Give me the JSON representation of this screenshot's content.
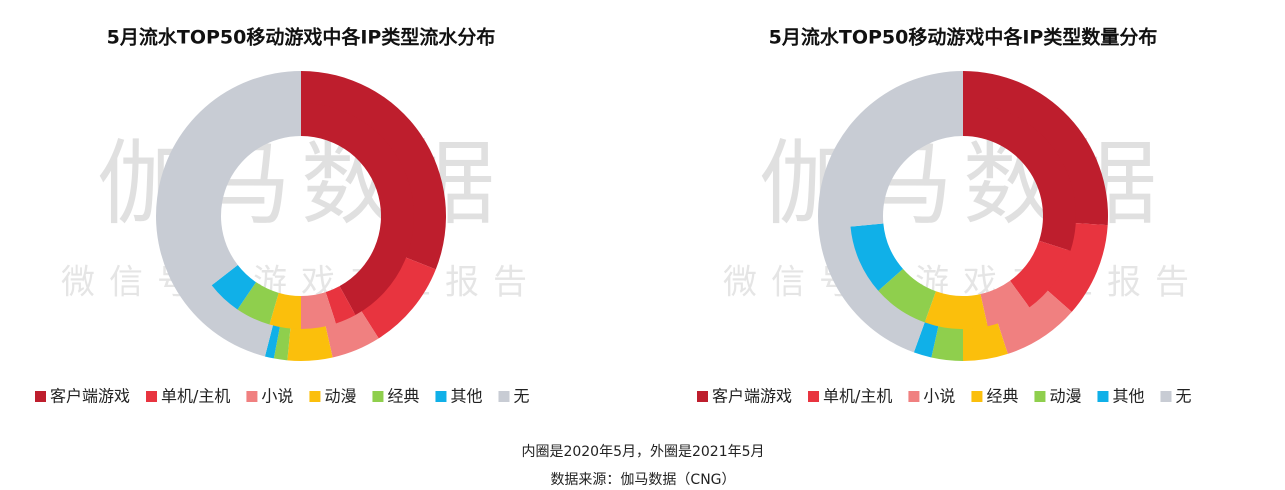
{
  "chart_data": [
    {
      "type": "donut",
      "title": "5月流水TOP50移动游戏中各IP类型流水分布",
      "categories": [
        "客户端游戏",
        "单机/主机",
        "小说",
        "动漫",
        "经典",
        "其他",
        "无"
      ],
      "colors": [
        "#be1e2d",
        "#e8343f",
        "#f08080",
        "#fbbf0c",
        "#8fcf4d",
        "#10b0e8",
        "#c8ccd4"
      ],
      "outer_values": [
        31,
        10,
        5.5,
        5,
        1.5,
        1,
        46
      ],
      "inner_values": [
        42,
        3,
        5,
        4.5,
        5,
        5,
        35.5
      ]
    },
    {
      "type": "donut",
      "title": "5月流水TOP50移动游戏中各IP类型数量分布",
      "categories": [
        "客户端游戏",
        "单机/主机",
        "小说",
        "经典",
        "动漫",
        "其他",
        "无"
      ],
      "colors": [
        "#be1e2d",
        "#e8343f",
        "#f08080",
        "#fbbf0c",
        "#8fcf4d",
        "#10b0e8",
        "#c8ccd4"
      ],
      "outer_values": [
        26,
        10.5,
        8.5,
        5,
        3.5,
        2,
        44.5
      ],
      "inner_values": [
        30,
        10,
        6.5,
        9,
        8,
        10,
        26.5
      ]
    }
  ],
  "watermark": {
    "title": "伽马数据",
    "subtitle": "微信号：游戏产业报告"
  },
  "footer": {
    "note": "内圈是2020年5月，外圈是2021年5月",
    "source": "数据来源：伽马数据（CNG）"
  }
}
